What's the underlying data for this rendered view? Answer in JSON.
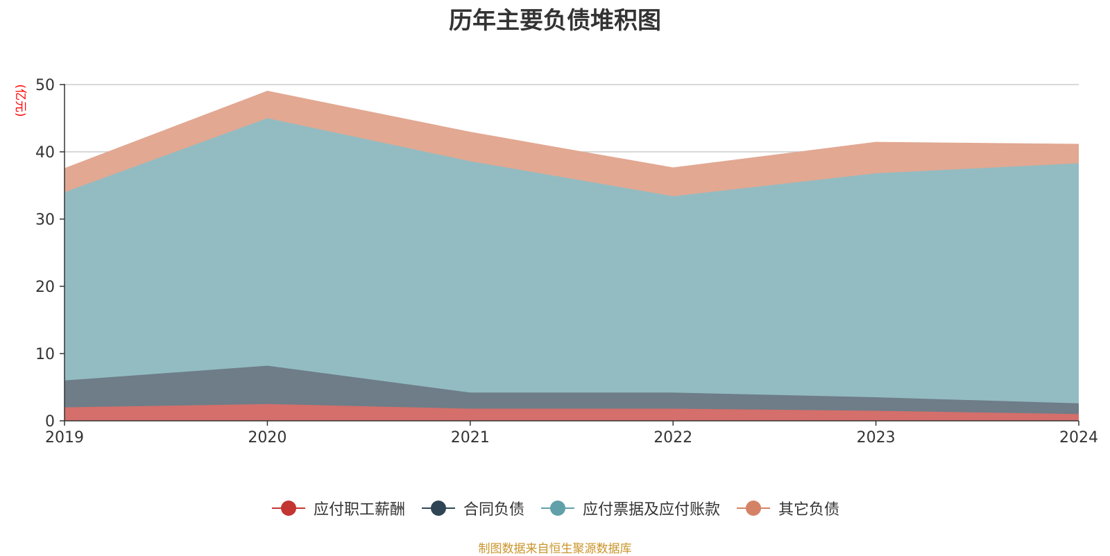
{
  "chart_data": {
    "type": "area",
    "stacked": true,
    "title": "历年主要负债堆积图",
    "ylabel": "(亿元)",
    "xlabel": "",
    "ylim": [
      0,
      50
    ],
    "yticks": [
      0,
      10,
      20,
      30,
      40,
      50
    ],
    "grid": true,
    "legend_position": "bottom-center",
    "categories": [
      "2019",
      "2020",
      "2021",
      "2022",
      "2023",
      "2024"
    ],
    "series": [
      {
        "name": "应付职工薪酬",
        "color": "#c23531",
        "area_color": "#d46f6b",
        "values": [
          2.0,
          2.5,
          1.8,
          1.8,
          1.5,
          1.0
        ]
      },
      {
        "name": "合同负债",
        "color": "#2f4554",
        "area_color": "#6e7d88",
        "values": [
          4.0,
          5.7,
          2.4,
          2.4,
          2.0,
          1.6
        ]
      },
      {
        "name": "应付票据及应付账款",
        "color": "#61a0a8",
        "area_color": "#93bcc2",
        "values": [
          28.0,
          36.8,
          34.4,
          29.2,
          33.3,
          35.7
        ]
      },
      {
        "name": "其它负债",
        "color": "#d48265",
        "area_color": "#e2a892",
        "values": [
          3.5,
          4.0,
          4.3,
          4.2,
          4.6,
          2.8
        ]
      }
    ]
  },
  "footer": {
    "source": "制图数据来自恒生聚源数据库"
  }
}
